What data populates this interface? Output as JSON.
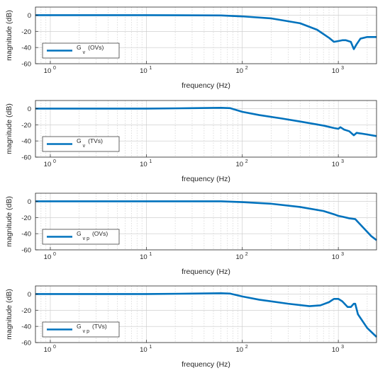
{
  "chart_data": [
    {
      "type": "line",
      "xlabel": "frequency (Hz)",
      "ylabel": "magnitude (dB)",
      "xscale": "log",
      "xlim": [
        0.7,
        2500
      ],
      "ylim": [
        -60,
        10
      ],
      "yticks": [
        "0",
        "-20",
        "-40",
        "-60"
      ],
      "xticks": [
        {
          "base": "10",
          "exp": "0"
        },
        {
          "base": "10",
          "exp": "1"
        },
        {
          "base": "10",
          "exp": "2"
        },
        {
          "base": "10",
          "exp": "3"
        }
      ],
      "grid": true,
      "legend": {
        "placement": "bottom-left",
        "base": "G",
        "sub": "v",
        "suffix": "(OVs)"
      },
      "series": [
        {
          "color": "#0072BD",
          "points": [
            [
              0.7,
              0
            ],
            [
              10,
              0
            ],
            [
              60,
              -0.3
            ],
            [
              100,
              -1.5
            ],
            [
              200,
              -4
            ],
            [
              400,
              -10
            ],
            [
              600,
              -18
            ],
            [
              800,
              -28
            ],
            [
              900,
              -33
            ],
            [
              1000,
              -32
            ],
            [
              1100,
              -31
            ],
            [
              1200,
              -31
            ],
            [
              1350,
              -33
            ],
            [
              1450,
              -42
            ],
            [
              1550,
              -36
            ],
            [
              1700,
              -29
            ],
            [
              2000,
              -27
            ],
            [
              2500,
              -27
            ]
          ]
        }
      ]
    },
    {
      "type": "line",
      "xlabel": "frequency (Hz)",
      "ylabel": "magnitude (dB)",
      "xscale": "log",
      "xlim": [
        0.7,
        2500
      ],
      "ylim": [
        -60,
        10
      ],
      "yticks": [
        "0",
        "-20",
        "-40",
        "-60"
      ],
      "xticks": [
        {
          "base": "10",
          "exp": "0"
        },
        {
          "base": "10",
          "exp": "1"
        },
        {
          "base": "10",
          "exp": "2"
        },
        {
          "base": "10",
          "exp": "3"
        }
      ],
      "grid": true,
      "legend": {
        "placement": "bottom-left",
        "base": "G",
        "sub": "v",
        "suffix": "(TVs)"
      },
      "series": [
        {
          "color": "#0072BD",
          "points": [
            [
              0.7,
              0
            ],
            [
              10,
              0
            ],
            [
              30,
              0.5
            ],
            [
              60,
              1
            ],
            [
              75,
              0.5
            ],
            [
              100,
              -4
            ],
            [
              150,
              -8
            ],
            [
              250,
              -12
            ],
            [
              400,
              -16
            ],
            [
              700,
              -21
            ],
            [
              900,
              -24
            ],
            [
              1000,
              -25
            ],
            [
              1050,
              -23
            ],
            [
              1150,
              -26
            ],
            [
              1300,
              -28
            ],
            [
              1450,
              -33
            ],
            [
              1550,
              -30
            ],
            [
              2000,
              -32
            ],
            [
              2500,
              -34
            ]
          ]
        }
      ]
    },
    {
      "type": "line",
      "xlabel": "frequency (Hz)",
      "ylabel": "magnitude (dB)",
      "xscale": "log",
      "xlim": [
        0.7,
        2500
      ],
      "ylim": [
        -60,
        10
      ],
      "yticks": [
        "0",
        "-20",
        "-40",
        "-60"
      ],
      "xticks": [
        {
          "base": "10",
          "exp": "0"
        },
        {
          "base": "10",
          "exp": "1"
        },
        {
          "base": "10",
          "exp": "2"
        },
        {
          "base": "10",
          "exp": "3"
        }
      ],
      "grid": true,
      "legend": {
        "placement": "bottom-left",
        "base": "G",
        "sub": "v p",
        "suffix": "(OVs)"
      },
      "series": [
        {
          "color": "#0072BD",
          "points": [
            [
              0.7,
              0
            ],
            [
              10,
              0
            ],
            [
              60,
              0
            ],
            [
              100,
              -1
            ],
            [
              200,
              -3
            ],
            [
              400,
              -7
            ],
            [
              700,
              -12
            ],
            [
              900,
              -16
            ],
            [
              1000,
              -18
            ],
            [
              1100,
              -19
            ],
            [
              1300,
              -21
            ],
            [
              1500,
              -22
            ],
            [
              1800,
              -32
            ],
            [
              2200,
              -43
            ],
            [
              2500,
              -48
            ]
          ]
        }
      ]
    },
    {
      "type": "line",
      "xlabel": "frequency (Hz)",
      "ylabel": "magnitude (dB)",
      "xscale": "log",
      "xlim": [
        0.7,
        2500
      ],
      "ylim": [
        -60,
        10
      ],
      "yticks": [
        "0",
        "-20",
        "-40",
        "-60"
      ],
      "xticks": [
        {
          "base": "10",
          "exp": "0"
        },
        {
          "base": "10",
          "exp": "1"
        },
        {
          "base": "10",
          "exp": "2"
        },
        {
          "base": "10",
          "exp": "3"
        }
      ],
      "grid": true,
      "legend": {
        "placement": "bottom-left",
        "base": "G",
        "sub": "v p",
        "suffix": "(TVs)"
      },
      "series": [
        {
          "color": "#0072BD",
          "points": [
            [
              0.7,
              0
            ],
            [
              10,
              0
            ],
            [
              30,
              0.5
            ],
            [
              60,
              1
            ],
            [
              75,
              0.5
            ],
            [
              100,
              -3
            ],
            [
              150,
              -7
            ],
            [
              300,
              -12
            ],
            [
              500,
              -15
            ],
            [
              650,
              -14
            ],
            [
              800,
              -10
            ],
            [
              900,
              -6
            ],
            [
              1000,
              -6
            ],
            [
              1100,
              -9
            ],
            [
              1250,
              -16
            ],
            [
              1350,
              -16
            ],
            [
              1450,
              -12
            ],
            [
              1500,
              -12
            ],
            [
              1600,
              -25
            ],
            [
              2000,
              -42
            ],
            [
              2500,
              -53
            ]
          ]
        }
      ]
    }
  ]
}
